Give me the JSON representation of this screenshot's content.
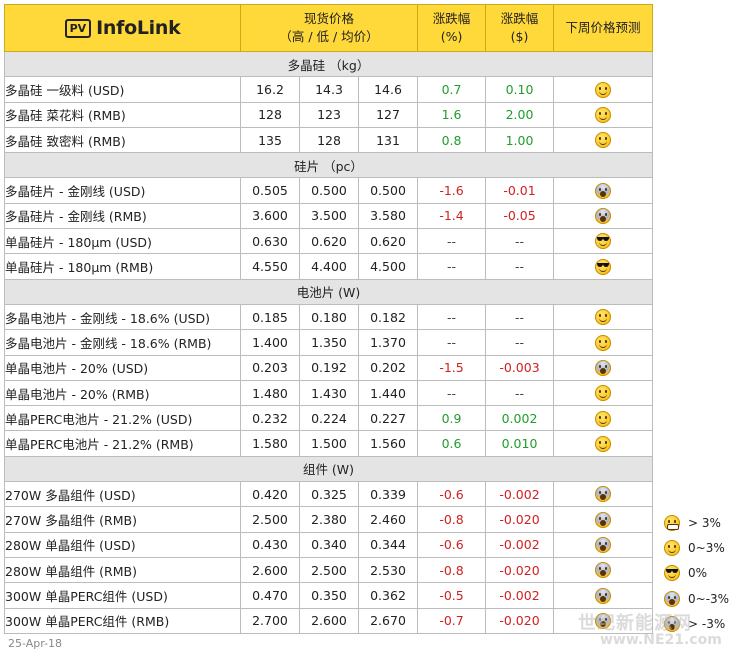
{
  "brand": {
    "badge": "PV",
    "name": "InfoLink"
  },
  "headers": {
    "spot_price": "现货价格",
    "spot_price_sub": "（高 / 低 / 均价）",
    "change_pct": "涨跌幅",
    "change_pct_unit": "(%)",
    "change_usd": "涨跌幅",
    "change_usd_unit": "($)",
    "forecast": "下周价格预测"
  },
  "sections": [
    {
      "title": "多晶硅 （kg）",
      "rows": [
        {
          "name": "多晶硅 一级料 (USD)",
          "high": "16.2",
          "low": "14.3",
          "avg": "14.6",
          "pct": "0.7",
          "chg": "0.10",
          "trend": "pos",
          "icon": "smile"
        },
        {
          "name": "多晶硅 菜花料 (RMB)",
          "high": "128",
          "low": "123",
          "avg": "127",
          "pct": "1.6",
          "chg": "2.00",
          "trend": "pos",
          "icon": "smile"
        },
        {
          "name": "多晶硅 致密料 (RMB)",
          "high": "135",
          "low": "128",
          "avg": "131",
          "pct": "0.8",
          "chg": "1.00",
          "trend": "pos",
          "icon": "smile"
        }
      ]
    },
    {
      "title": "硅片 （pc）",
      "rows": [
        {
          "name": "多晶硅片 - 金刚线 (USD)",
          "high": "0.505",
          "low": "0.500",
          "avg": "0.500",
          "pct": "-1.6",
          "chg": "-0.01",
          "trend": "neg",
          "icon": "scream"
        },
        {
          "name": "多晶硅片 - 金刚线 (RMB)",
          "high": "3.600",
          "low": "3.500",
          "avg": "3.580",
          "pct": "-1.4",
          "chg": "-0.05",
          "trend": "neg",
          "icon": "scream"
        },
        {
          "name": "单晶硅片 - 180μm (USD)",
          "high": "0.630",
          "low": "0.620",
          "avg": "0.620",
          "pct": "--",
          "chg": "--",
          "trend": "flat",
          "icon": "cool"
        },
        {
          "name": "单晶硅片 - 180μm (RMB)",
          "high": "4.550",
          "low": "4.400",
          "avg": "4.500",
          "pct": "--",
          "chg": "--",
          "trend": "flat",
          "icon": "cool"
        }
      ]
    },
    {
      "title": "电池片 (W)",
      "rows": [
        {
          "name": "多晶电池片 - 金刚线 - 18.6% (USD)",
          "high": "0.185",
          "low": "0.180",
          "avg": "0.182",
          "pct": "--",
          "chg": "--",
          "trend": "flat",
          "icon": "smile"
        },
        {
          "name": "多晶电池片 - 金刚线 - 18.6% (RMB)",
          "high": "1.400",
          "low": "1.350",
          "avg": "1.370",
          "pct": "--",
          "chg": "--",
          "trend": "flat",
          "icon": "smile"
        },
        {
          "name": "单晶电池片 - 20% (USD)",
          "high": "0.203",
          "low": "0.192",
          "avg": "0.202",
          "pct": "-1.5",
          "chg": "-0.003",
          "trend": "neg",
          "icon": "scream"
        },
        {
          "name": "单晶电池片 - 20% (RMB)",
          "high": "1.480",
          "low": "1.430",
          "avg": "1.440",
          "pct": "--",
          "chg": "--",
          "trend": "flat",
          "icon": "smile"
        },
        {
          "name": "单晶PERC电池片 - 21.2% (USD)",
          "high": "0.232",
          "low": "0.224",
          "avg": "0.227",
          "pct": "0.9",
          "chg": "0.002",
          "trend": "pos",
          "icon": "smile"
        },
        {
          "name": "单晶PERC电池片 - 21.2% (RMB)",
          "high": "1.580",
          "low": "1.500",
          "avg": "1.560",
          "pct": "0.6",
          "chg": "0.010",
          "trend": "pos",
          "icon": "smile"
        }
      ]
    },
    {
      "title": "组件 (W)",
      "rows": [
        {
          "name": "270W 多晶组件 (USD)",
          "high": "0.420",
          "low": "0.325",
          "avg": "0.339",
          "pct": "-0.6",
          "chg": "-0.002",
          "trend": "neg",
          "icon": "scream"
        },
        {
          "name": "270W 多晶组件 (RMB)",
          "high": "2.500",
          "low": "2.380",
          "avg": "2.460",
          "pct": "-0.8",
          "chg": "-0.020",
          "trend": "neg",
          "icon": "scream"
        },
        {
          "name": "280W 单晶组件 (USD)",
          "high": "0.430",
          "low": "0.340",
          "avg": "0.344",
          "pct": "-0.6",
          "chg": "-0.002",
          "trend": "neg",
          "icon": "scream"
        },
        {
          "name": "280W 单晶组件 (RMB)",
          "high": "2.600",
          "low": "2.500",
          "avg": "2.530",
          "pct": "-0.8",
          "chg": "-0.020",
          "trend": "neg",
          "icon": "scream"
        },
        {
          "name": "300W 单晶PERC组件 (USD)",
          "high": "0.470",
          "low": "0.350",
          "avg": "0.362",
          "pct": "-0.5",
          "chg": "-0.002",
          "trend": "neg",
          "icon": "scream"
        },
        {
          "name": "300W 单晶PERC组件 (RMB)",
          "high": "2.700",
          "low": "2.600",
          "avg": "2.670",
          "pct": "-0.7",
          "chg": "-0.020",
          "trend": "neg",
          "icon": "scream"
        }
      ]
    }
  ],
  "legend": [
    {
      "icon": "grimace",
      "label": "> 3%"
    },
    {
      "icon": "smile",
      "label": "0~3%"
    },
    {
      "icon": "cool",
      "label": "0%"
    },
    {
      "icon": "scream",
      "label": "0~-3%"
    },
    {
      "icon": "scream",
      "label": "> -3%"
    }
  ],
  "footer": {
    "date": "25-Apr-18"
  },
  "watermark": {
    "text": "世纪新能源网",
    "url": "www.NE21.com"
  },
  "colors": {
    "header_bg": "#ffd83a",
    "section_bg": "#e4e4e4",
    "positive": "#1f9e2a",
    "negative": "#d12020"
  }
}
